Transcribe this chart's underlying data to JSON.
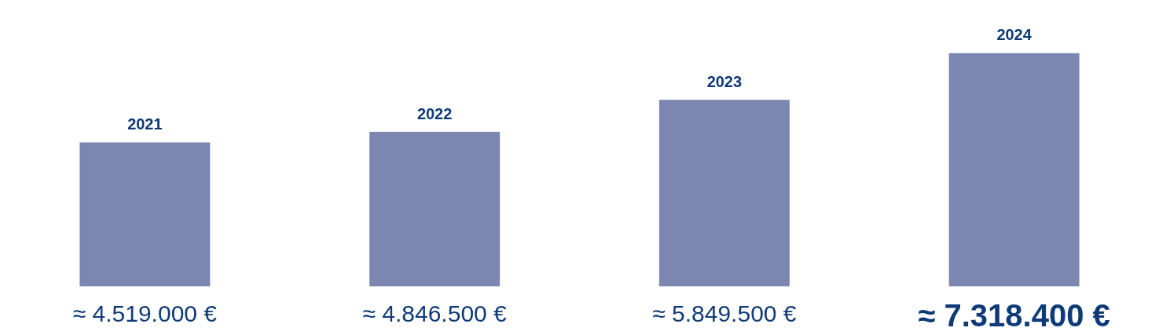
{
  "chart_data": {
    "type": "bar",
    "categories": [
      "2021",
      "2022",
      "2023",
      "2024"
    ],
    "values": [
      4519000,
      4846500,
      5849500,
      7318400
    ],
    "value_labels": [
      "≈ 4.519.000 €",
      "≈ 4.846.500 €",
      "≈ 5.849.500 €",
      "≈ 7.318.400 €"
    ],
    "color": "#7b87b1"
  }
}
